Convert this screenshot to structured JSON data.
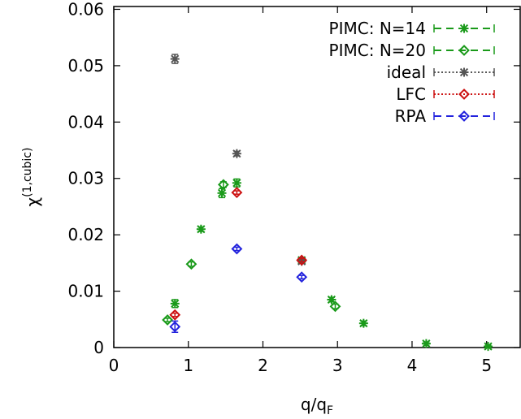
{
  "chart_data": {
    "type": "scatter",
    "title": "",
    "xlabel": "q/q",
    "xlabel_sub": "F",
    "ylabel": "χ",
    "ylabel_sup": "(1,cubic)",
    "xlim": [
      0,
      5.45
    ],
    "ylim": [
      0,
      0.0605
    ],
    "xticks": [
      {
        "v": 0,
        "label": "0"
      },
      {
        "v": 1,
        "label": "1"
      },
      {
        "v": 2,
        "label": "2"
      },
      {
        "v": 3,
        "label": "3"
      },
      {
        "v": 4,
        "label": "4"
      },
      {
        "v": 5,
        "label": "5"
      }
    ],
    "yticks": [
      {
        "v": 0,
        "label": "0"
      },
      {
        "v": 0.01,
        "label": "0.01"
      },
      {
        "v": 0.02,
        "label": "0.02"
      },
      {
        "v": 0.03,
        "label": "0.03"
      },
      {
        "v": 0.04,
        "label": "0.04"
      },
      {
        "v": 0.05,
        "label": "0.05"
      },
      {
        "v": 0.06,
        "label": "0.06"
      }
    ],
    "grid": false,
    "legend_position": "top-right",
    "series": [
      {
        "name": "PIMC: N=14",
        "color": "#1a9a1a",
        "marker": "star",
        "line": "dashed",
        "points": [
          {
            "x": 0.82,
            "y": 0.0078,
            "err": 0.0007
          },
          {
            "x": 1.45,
            "y": 0.0274,
            "err": 0.0008
          },
          {
            "x": 1.65,
            "y": 0.0292,
            "err": 0.0007
          },
          {
            "x": 1.17,
            "y": 0.021,
            "err": 0.0004
          },
          {
            "x": 2.52,
            "y": 0.0155,
            "err": 0.0005
          },
          {
            "x": 2.92,
            "y": 0.0085,
            "err": 0.0004
          },
          {
            "x": 3.35,
            "y": 0.0043,
            "err": 0.0004
          },
          {
            "x": 4.19,
            "y": 0.0007,
            "err": 0.0003
          },
          {
            "x": 5.02,
            "y": 0.0002,
            "err": 0.0002
          }
        ]
      },
      {
        "name": "PIMC: N=20",
        "color": "#1a9a1a",
        "marker": "diamond",
        "line": "dashed",
        "points": [
          {
            "x": 0.72,
            "y": 0.0049,
            "err": 0.0003
          },
          {
            "x": 1.04,
            "y": 0.0148,
            "err": 0.0004
          },
          {
            "x": 1.47,
            "y": 0.0289,
            "err": 0.0005
          },
          {
            "x": 2.97,
            "y": 0.0073,
            "err": 0.0004
          }
        ]
      },
      {
        "name": "ideal",
        "color": "#555555",
        "marker": "star",
        "line": "dotted",
        "points": [
          {
            "x": 0.82,
            "y": 0.0512,
            "err": 0.0008
          },
          {
            "x": 1.65,
            "y": 0.0344,
            "err": 0.0004
          },
          {
            "x": 2.52,
            "y": 0.0153,
            "err": 0.0003
          }
        ]
      },
      {
        "name": "LFC",
        "color": "#cc1111",
        "marker": "diamond",
        "line": "dotted",
        "points": [
          {
            "x": 0.82,
            "y": 0.0058,
            "err": 0.0003
          },
          {
            "x": 1.65,
            "y": 0.0275,
            "err": 0.0003
          },
          {
            "x": 2.52,
            "y": 0.0155,
            "err": 0.0003
          }
        ]
      },
      {
        "name": "RPA",
        "color": "#2222dd",
        "marker": "diamond",
        "line": "dashed",
        "points": [
          {
            "x": 0.82,
            "y": 0.0037,
            "err": 0.001
          },
          {
            "x": 1.65,
            "y": 0.0175,
            "err": 0.0003
          },
          {
            "x": 2.52,
            "y": 0.0125,
            "err": 0.0003
          }
        ]
      }
    ]
  }
}
